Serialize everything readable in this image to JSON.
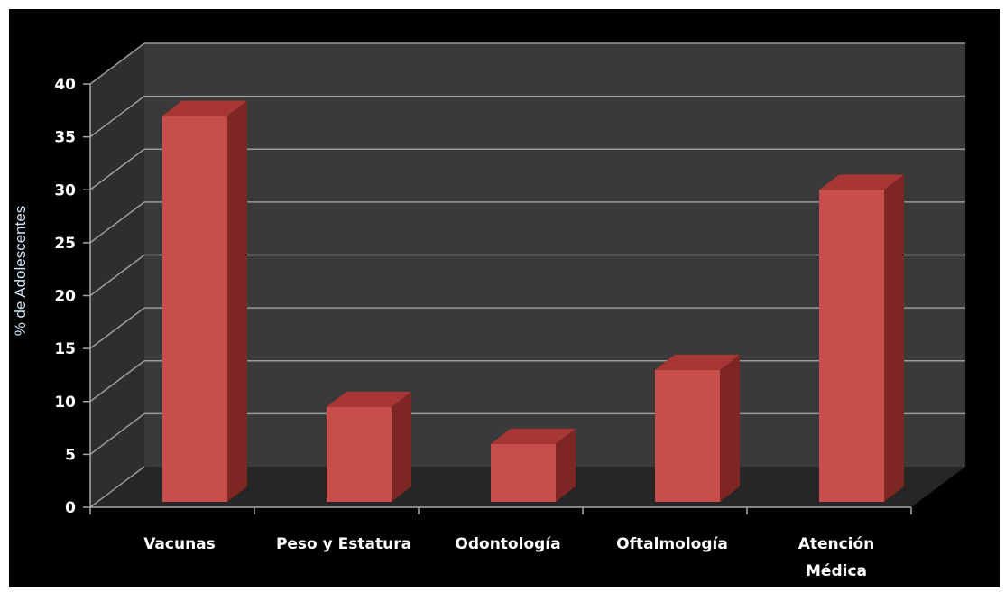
{
  "chart_data": {
    "type": "bar",
    "title": "",
    "xlabel": "",
    "ylabel": "% de Adolescentes",
    "categories": [
      "Vacunas",
      "Peso y Estatura",
      "Odontología",
      "Oftalmología",
      "Atención Médica"
    ],
    "category_lines": [
      [
        "Vacunas"
      ],
      [
        "Peso y Estatura"
      ],
      [
        "Odontología"
      ],
      [
        "Oftalmología"
      ],
      [
        "Atención",
        "Médica"
      ]
    ],
    "values": [
      38,
      10.5,
      7,
      14,
      31
    ],
    "ylim": [
      0,
      40
    ],
    "yticks": [
      "0",
      "5",
      "10",
      "15",
      "20",
      "25",
      "30",
      "35",
      "40"
    ],
    "grid": true,
    "three_d": true,
    "legend": "none"
  },
  "colors": {
    "background": "#000000",
    "back_wall": "#3a3a3a",
    "side_wall": "#2e2e2e",
    "floor": "#262626",
    "gridline": "#9a9a9a",
    "axis": "#a8a8a8",
    "bar_front": "#c84e4c",
    "bar_top": "#a83634",
    "bar_side": "#7e2624",
    "text": "#ffffff",
    "axis_title": "#cfe4f5"
  }
}
